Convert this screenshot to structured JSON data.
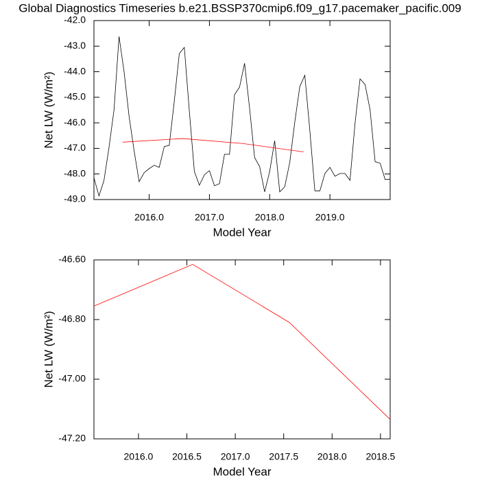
{
  "chart_data": [
    {
      "type": "line",
      "title": "Global Diagnostics Timeseries b.e21.BSSP370cmip6.f09_g17.pacemaker_pacific.009",
      "xlabel": "Model Year",
      "ylabel": "Net LW (W/m²)",
      "xlim": [
        2015.0833,
        2020.0
      ],
      "ylim": [
        -49.0,
        -42.0
      ],
      "xticks": [
        {
          "value": 2016,
          "label": "2016.0"
        },
        {
          "value": 2017,
          "label": "2017.0"
        },
        {
          "value": 2018,
          "label": "2018.0"
        },
        {
          "value": 2019,
          "label": "2019.0"
        }
      ],
      "yticks": [
        {
          "value": -42,
          "label": "-42.0"
        },
        {
          "value": -43,
          "label": "-43.0"
        },
        {
          "value": -44,
          "label": "-44.0"
        },
        {
          "value": -45,
          "label": "-45.0"
        },
        {
          "value": -46,
          "label": "-46.0"
        },
        {
          "value": -47,
          "label": "-47.0"
        },
        {
          "value": -48,
          "label": "-48.0"
        },
        {
          "value": -49,
          "label": "-49.0"
        }
      ],
      "series": [
        {
          "color": "#000000",
          "x": [
            2015.0833,
            2015.1667,
            2015.25,
            2015.3333,
            2015.4167,
            2015.5,
            2015.5833,
            2015.6667,
            2015.75,
            2015.8333,
            2015.9167,
            2016.0,
            2016.0833,
            2016.1667,
            2016.25,
            2016.3333,
            2016.4167,
            2016.5,
            2016.5833,
            2016.6667,
            2016.75,
            2016.8333,
            2016.9167,
            2017.0,
            2017.0833,
            2017.1667,
            2017.25,
            2017.3333,
            2017.4167,
            2017.5,
            2017.5833,
            2017.6667,
            2017.75,
            2017.8333,
            2017.9167,
            2018.0,
            2018.0833,
            2018.1667,
            2018.25,
            2018.3333,
            2018.4167,
            2018.5,
            2018.5833,
            2018.6667,
            2018.75,
            2018.8333,
            2018.9167,
            2019.0,
            2019.0833,
            2019.1667,
            2019.25,
            2019.3333,
            2019.4167,
            2019.5,
            2019.5833,
            2019.6667,
            2019.75,
            2019.8333,
            2019.9167,
            2020.0
          ],
          "values": [
            -48.15,
            -48.86,
            -48.25,
            -46.96,
            -45.49,
            -42.62,
            -44.0,
            -45.75,
            -47.09,
            -48.3,
            -47.95,
            -47.79,
            -47.66,
            -47.74,
            -46.93,
            -46.88,
            -45.16,
            -43.29,
            -43.05,
            -45.54,
            -47.9,
            -48.44,
            -48.03,
            -47.87,
            -48.46,
            -48.38,
            -47.23,
            -47.23,
            -44.9,
            -44.6,
            -43.67,
            -45.43,
            -47.36,
            -47.71,
            -48.7,
            -47.9,
            -46.7,
            -48.7,
            -48.5,
            -47.55,
            -45.97,
            -44.58,
            -44.14,
            -46.3,
            -48.66,
            -48.66,
            -47.98,
            -47.74,
            -48.09,
            -47.98,
            -47.98,
            -48.25,
            -46.02,
            -44.28,
            -44.5,
            -45.49,
            -47.52,
            -47.58,
            -48.22,
            -48.2
          ]
        },
        {
          "color": "#ff0000",
          "x": [
            2015.56,
            2016.56,
            2017.56,
            2018.56
          ],
          "values": [
            -46.755,
            -46.615,
            -46.81,
            -47.135
          ]
        }
      ]
    },
    {
      "type": "line",
      "xlabel": "Model Year",
      "ylabel": "Net LW (W/m²)",
      "xlim": [
        2015.54,
        2018.6
      ],
      "ylim": [
        -47.2,
        -46.6
      ],
      "xticks": [
        {
          "value": 2016,
          "label": "2016.0"
        },
        {
          "value": 2016.5,
          "label": "2016.5"
        },
        {
          "value": 2017,
          "label": "2017.0"
        },
        {
          "value": 2017.5,
          "label": "2017.5"
        },
        {
          "value": 2018,
          "label": "2018.0"
        },
        {
          "value": 2018.5,
          "label": "2018.5"
        }
      ],
      "yticks": [
        {
          "value": -46.6,
          "label": "-46.60"
        },
        {
          "value": -46.8,
          "label": "-46.80"
        },
        {
          "value": -47.0,
          "label": "-47.00"
        },
        {
          "value": -47.2,
          "label": "-47.20"
        }
      ],
      "series": [
        {
          "color": "#ff0000",
          "x": [
            2015.54,
            2016.56,
            2017.56,
            2018.6
          ],
          "values": [
            -46.755,
            -46.615,
            -46.81,
            -47.135
          ]
        }
      ]
    }
  ]
}
